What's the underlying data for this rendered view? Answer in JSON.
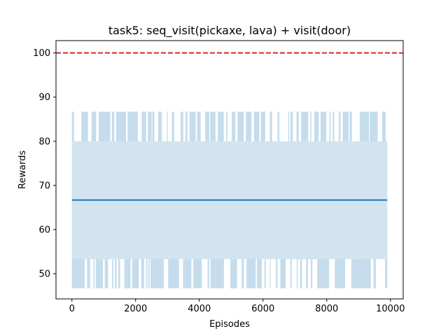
{
  "chart_data": {
    "type": "line",
    "title": "task5: seq_visit(pickaxe, lava) + visit(door)",
    "xlabel": "Episodes",
    "ylabel": "Rewards",
    "xlim": [
      -500,
      10400
    ],
    "ylim": [
      44.3,
      102.8
    ],
    "xticks": [
      0,
      2000,
      4000,
      6000,
      8000,
      10000
    ],
    "yticks": [
      50,
      60,
      70,
      80,
      90,
      100
    ],
    "grid": false,
    "series": [
      {
        "kind": "mean-line",
        "color": "#1f77b4",
        "x": [
          0,
          9900
        ],
        "y": [
          66.7,
          66.7
        ]
      }
    ],
    "band": {
      "color": "#1f77b4",
      "alpha": 0.2,
      "x_range": [
        0,
        9900
      ],
      "lower_extreme": 46.7,
      "lower_alt": 53.3,
      "upper_extreme": 86.7,
      "upper_alt": 80.0
    },
    "reference_line": {
      "y": 100,
      "color": "#d62728",
      "style": "dashed"
    }
  }
}
